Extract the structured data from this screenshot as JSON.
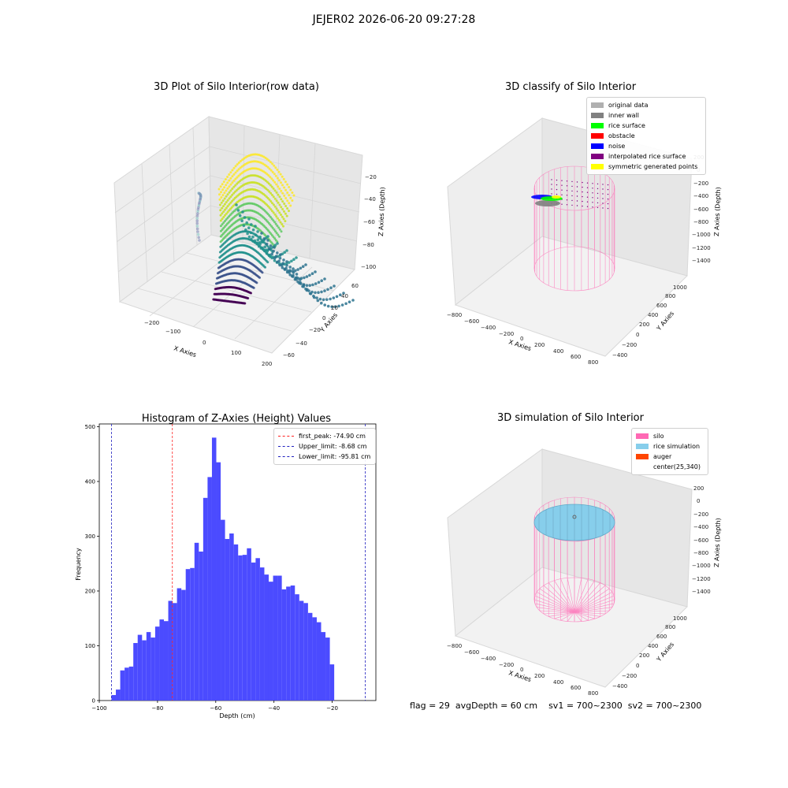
{
  "suptitle": "JEJER02 2026-06-20 09:27:28",
  "colors": {
    "histogram_bar": "#4b4bff",
    "first_peak_line": "#ff2020",
    "limit_line": "#2020c0",
    "silo": "#ff69b4",
    "rice_simulation": "#87ceeb",
    "auger": "#ff4500"
  },
  "panel_raw": {
    "title": "3D Plot of Silo Interior(row data)",
    "x_label": "X Axies",
    "y_label": "Y Axies",
    "z_label": "Z Axies (Depth)",
    "x_ticks": [
      "−200",
      "−100",
      "0",
      "100",
      "200"
    ],
    "y_ticks": [
      "−60",
      "−40",
      "−20",
      "0",
      "20",
      "40",
      "60"
    ],
    "z_ticks": [
      "−20",
      "−40",
      "−60",
      "−80",
      "−100"
    ],
    "colormap": "viridis"
  },
  "panel_classify": {
    "title": "3D classify of Silo Interior",
    "legend": [
      {
        "label": "original data",
        "color": "#b0b0b0"
      },
      {
        "label": "inner wall",
        "color": "#808080"
      },
      {
        "label": "rice surface",
        "color": "#00ff00"
      },
      {
        "label": "obstacle",
        "color": "#ff0000"
      },
      {
        "label": "noise",
        "color": "#0000ff"
      },
      {
        "label": "interpolated rice surface",
        "color": "#800080"
      },
      {
        "label": "symmetric generated points",
        "color": "#ffff00"
      }
    ],
    "x_label": "X Axies",
    "y_label": "Y Axies",
    "z_label": "Z Axies (Depth)",
    "x_ticks": [
      "−800",
      "−600",
      "−400",
      "−200",
      "0",
      "200",
      "400",
      "600",
      "800"
    ],
    "y_ticks": [
      "−400",
      "−200",
      "0",
      "200",
      "400",
      "600",
      "800",
      "1000"
    ],
    "z_ticks": [
      "200",
      "0",
      "−200",
      "−400",
      "−600",
      "−800",
      "−1000",
      "−1200",
      "−1400"
    ]
  },
  "panel_sim": {
    "title": "3D simulation of Silo Interior",
    "legend": [
      {
        "label": "silo",
        "color": "#ff69b4"
      },
      {
        "label": "rice simulation",
        "color": "#87ceeb"
      },
      {
        "label": "auger",
        "color": "#ff4500"
      },
      {
        "label": "center(25,340)",
        "color": ""
      }
    ],
    "x_label": "X Axies",
    "y_label": "Y Axies",
    "z_label": "Z Axies (Depth)",
    "x_ticks": [
      "−800",
      "−600",
      "−400",
      "−200",
      "0",
      "200",
      "400",
      "600",
      "800"
    ],
    "y_ticks": [
      "−400",
      "−200",
      "0",
      "200",
      "400",
      "600",
      "800",
      "1000"
    ],
    "z_ticks": [
      "200",
      "0",
      "−200",
      "−400",
      "−600",
      "−800",
      "−1000",
      "−1200",
      "−1400"
    ]
  },
  "footer": {
    "flag": "flag = 29",
    "avg_depth": "avgDepth = 60 cm",
    "sv1": "sv1 = 700~2300",
    "sv2": "sv2 = 700~2300"
  },
  "chart_data": {
    "type": "bar",
    "title": "Histogram of Z-Axies (Height) Values",
    "xlabel": "Depth (cm)",
    "ylabel": "Frequency",
    "xlim": [
      -100,
      -5
    ],
    "ylim": [
      0,
      505
    ],
    "x_ticks": [
      -100,
      -80,
      -60,
      -40,
      -20
    ],
    "x_tick_labels": [
      "−100",
      "−80",
      "−60",
      "−40",
      "−20"
    ],
    "y_ticks": [
      0,
      100,
      200,
      300,
      400,
      500
    ],
    "bin_start": -95.81,
    "bin_width": 1.5,
    "values": [
      10,
      20,
      55,
      60,
      62,
      105,
      120,
      110,
      125,
      115,
      135,
      148,
      145,
      182,
      178,
      205,
      202,
      240,
      242,
      288,
      272,
      370,
      408,
      480,
      435,
      330,
      295,
      305,
      285,
      265,
      266,
      278,
      252,
      260,
      243,
      230,
      217,
      228,
      228,
      203,
      208,
      210,
      194,
      182,
      178,
      160,
      152,
      143,
      125,
      115,
      66
    ],
    "vlines": [
      {
        "label": "first_peak: -74.90 cm",
        "x": -74.9,
        "style": "dashed"
      },
      {
        "label": "Upper_limit: -8.68 cm",
        "x": -8.68,
        "style": "dashed"
      },
      {
        "label": "Lower_limit: -95.81 cm",
        "x": -95.81,
        "style": "dashed"
      }
    ],
    "legend_loc": "upper right",
    "grid": false
  }
}
